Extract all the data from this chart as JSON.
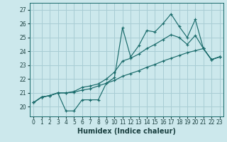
{
  "title": "",
  "xlabel": "Humidex (Indice chaleur)",
  "bg_color": "#cce8ec",
  "grid_color": "#a8cdd4",
  "line_color": "#1a6b6b",
  "xlim": [
    -0.5,
    23.5
  ],
  "ylim": [
    19.3,
    27.5
  ],
  "xticks": [
    0,
    1,
    2,
    3,
    4,
    5,
    6,
    7,
    8,
    9,
    10,
    11,
    12,
    13,
    14,
    15,
    16,
    17,
    18,
    19,
    20,
    21,
    22,
    23
  ],
  "yticks": [
    20,
    21,
    22,
    23,
    24,
    25,
    26,
    27
  ],
  "series": [
    [
      20.3,
      20.7,
      20.8,
      21.0,
      19.7,
      19.7,
      20.5,
      20.5,
      20.5,
      21.7,
      22.1,
      25.7,
      23.6,
      24.4,
      25.5,
      25.4,
      26.0,
      26.7,
      25.8,
      25.0,
      26.3,
      24.2,
      23.4,
      23.6
    ],
    [
      20.3,
      20.7,
      20.8,
      21.0,
      21.0,
      21.05,
      21.2,
      21.3,
      21.5,
      21.7,
      21.9,
      22.2,
      22.4,
      22.6,
      22.85,
      23.05,
      23.3,
      23.5,
      23.7,
      23.9,
      24.05,
      24.2,
      23.4,
      23.6
    ],
    [
      20.3,
      20.7,
      20.8,
      21.0,
      21.0,
      21.1,
      21.4,
      21.5,
      21.65,
      22.0,
      22.5,
      23.3,
      23.5,
      23.8,
      24.2,
      24.5,
      24.85,
      25.2,
      25.0,
      24.5,
      25.15,
      24.2,
      23.4,
      23.6
    ]
  ],
  "xlabel_fontsize": 7,
  "tick_fontsize": 5.5
}
